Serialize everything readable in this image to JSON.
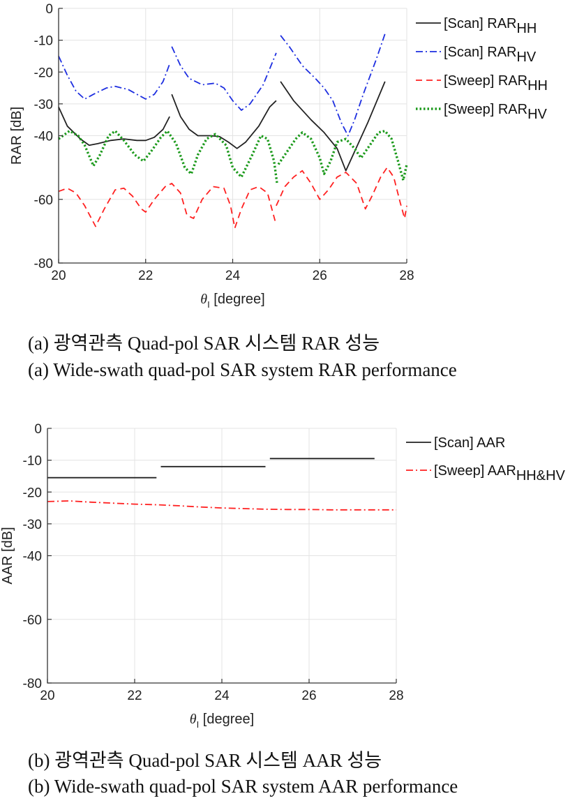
{
  "chart_data": [
    {
      "type": "line",
      "ylabel": "RAR [dB]",
      "xlabel_symbol": "θ",
      "xlabel_subscript": "I",
      "xlabel_text": " [degree]",
      "xlim": [
        20,
        28
      ],
      "ylim": [
        -80,
        0
      ],
      "xticks": [
        "20",
        "22",
        "24",
        "26",
        "28"
      ],
      "yticks": [
        "0",
        "-10",
        "-20",
        "-30",
        "-40",
        "-60",
        "-80"
      ],
      "ytick_values": [
        0,
        -10,
        -20,
        -30,
        -40,
        -60,
        -80
      ],
      "grid": true,
      "legend_position": "right",
      "series": [
        {
          "name": "[Scan] RAR",
          "name_sub": "HH",
          "color": "#222222",
          "dash": "solid",
          "segments": [
            [
              [
                20.0,
                -31
              ],
              [
                20.2,
                -37
              ],
              [
                20.5,
                -41
              ],
              [
                20.7,
                -43
              ],
              [
                20.9,
                -42.5
              ],
              [
                21.2,
                -41.5
              ],
              [
                21.5,
                -41
              ],
              [
                21.8,
                -41.5
              ],
              [
                22.0,
                -41.5
              ],
              [
                22.2,
                -40.5
              ],
              [
                22.4,
                -38
              ],
              [
                22.55,
                -34
              ]
            ],
            [
              [
                22.6,
                -27
              ],
              [
                22.8,
                -34
              ],
              [
                23.0,
                -38
              ],
              [
                23.2,
                -40
              ],
              [
                23.5,
                -40
              ],
              [
                23.7,
                -40.3
              ],
              [
                23.9,
                -42
              ],
              [
                24.1,
                -44
              ],
              [
                24.3,
                -42
              ],
              [
                24.6,
                -37
              ],
              [
                24.85,
                -31
              ],
              [
                25.0,
                -29
              ]
            ],
            [
              [
                25.1,
                -23
              ],
              [
                25.4,
                -29
              ],
              [
                25.8,
                -35
              ],
              [
                26.1,
                -39
              ],
              [
                26.4,
                -44
              ],
              [
                26.6,
                -51
              ],
              [
                26.8,
                -45
              ],
              [
                27.1,
                -36
              ],
              [
                27.5,
                -23
              ]
            ]
          ]
        },
        {
          "name": "[Scan] RAR",
          "name_sub": "HV",
          "color": "#1d2ee0",
          "dash": "dashdot",
          "segments": [
            [
              [
                20.0,
                -15
              ],
              [
                20.2,
                -21
              ],
              [
                20.4,
                -26
              ],
              [
                20.6,
                -28.5
              ],
              [
                20.8,
                -27
              ],
              [
                21.1,
                -25
              ],
              [
                21.3,
                -24.5
              ],
              [
                21.6,
                -25.5
              ],
              [
                21.8,
                -27
              ],
              [
                22.0,
                -28.5
              ],
              [
                22.2,
                -27
              ],
              [
                22.4,
                -23
              ],
              [
                22.55,
                -17.5
              ]
            ],
            [
              [
                22.6,
                -12
              ],
              [
                22.8,
                -18
              ],
              [
                23.0,
                -22
              ],
              [
                23.3,
                -24
              ],
              [
                23.6,
                -23.5
              ],
              [
                23.8,
                -25
              ],
              [
                24.0,
                -29
              ],
              [
                24.2,
                -32
              ],
              [
                24.4,
                -30
              ],
              [
                24.7,
                -24
              ],
              [
                25.0,
                -14
              ]
            ],
            [
              [
                25.1,
                -8.5
              ],
              [
                25.3,
                -12
              ],
              [
                25.6,
                -18
              ],
              [
                25.9,
                -22
              ],
              [
                26.1,
                -25
              ],
              [
                26.3,
                -29
              ],
              [
                26.5,
                -36
              ],
              [
                26.65,
                -40
              ],
              [
                26.8,
                -35
              ],
              [
                27.0,
                -27
              ],
              [
                27.3,
                -16
              ],
              [
                27.5,
                -8
              ]
            ]
          ]
        },
        {
          "name": "[Sweep] RAR",
          "name_sub": "HH",
          "color": "#ff2020",
          "dash": "dashed",
          "segments": [
            [
              [
                20.0,
                -57.5
              ],
              [
                20.2,
                -56.5
              ],
              [
                20.4,
                -58
              ],
              [
                20.6,
                -62
              ],
              [
                20.85,
                -68.5
              ],
              [
                21.05,
                -63
              ],
              [
                21.3,
                -57
              ],
              [
                21.5,
                -56.5
              ],
              [
                21.7,
                -59
              ],
              [
                21.9,
                -63
              ],
              [
                22.0,
                -64
              ],
              [
                22.2,
                -60
              ],
              [
                22.45,
                -56
              ],
              [
                22.6,
                -55
              ],
              [
                22.8,
                -58
              ],
              [
                22.95,
                -65
              ],
              [
                23.1,
                -66
              ],
              [
                23.3,
                -60
              ],
              [
                23.55,
                -56
              ],
              [
                23.8,
                -56.5
              ],
              [
                23.95,
                -62
              ],
              [
                24.05,
                -69
              ],
              [
                24.2,
                -63
              ],
              [
                24.4,
                -57
              ],
              [
                24.6,
                -56
              ],
              [
                24.8,
                -58
              ],
              [
                24.98,
                -67
              ]
            ],
            [
              [
                25.0,
                -62
              ],
              [
                25.2,
                -56
              ],
              [
                25.4,
                -53
              ],
              [
                25.6,
                -51
              ],
              [
                25.8,
                -55
              ],
              [
                26.0,
                -60
              ],
              [
                26.2,
                -57
              ],
              [
                26.4,
                -53
              ],
              [
                26.6,
                -51.5
              ],
              [
                26.85,
                -55
              ],
              [
                27.05,
                -63
              ],
              [
                27.2,
                -59
              ],
              [
                27.4,
                -53
              ],
              [
                27.55,
                -50
              ],
              [
                27.7,
                -53
              ],
              [
                27.85,
                -61
              ],
              [
                27.95,
                -66
              ],
              [
                28.0,
                -62
              ]
            ]
          ]
        },
        {
          "name": "[Sweep] RAR",
          "name_sub": "HV",
          "color": "#1c9a1c",
          "dash": "dotted",
          "segments": [
            [
              [
                20.0,
                -41
              ],
              [
                20.25,
                -38.5
              ],
              [
                20.45,
                -40
              ],
              [
                20.6,
                -43
              ],
              [
                20.8,
                -49.5
              ],
              [
                20.95,
                -46
              ],
              [
                21.15,
                -40
              ],
              [
                21.3,
                -38.5
              ],
              [
                21.5,
                -41.5
              ],
              [
                21.75,
                -46
              ],
              [
                21.95,
                -48
              ],
              [
                22.15,
                -44.5
              ],
              [
                22.35,
                -40.5
              ],
              [
                22.5,
                -38.5
              ],
              [
                22.7,
                -42.5
              ],
              [
                22.9,
                -50
              ],
              [
                23.05,
                -52
              ],
              [
                23.2,
                -46
              ],
              [
                23.4,
                -41
              ],
              [
                23.6,
                -39.5
              ],
              [
                23.85,
                -43
              ],
              [
                24.0,
                -50
              ],
              [
                24.2,
                -53
              ],
              [
                24.45,
                -46
              ],
              [
                24.65,
                -40
              ],
              [
                24.8,
                -41
              ],
              [
                24.95,
                -48
              ],
              [
                25.02,
                -55
              ]
            ],
            [
              [
                25.05,
                -49
              ],
              [
                25.25,
                -45
              ],
              [
                25.45,
                -41
              ],
              [
                25.6,
                -39
              ],
              [
                25.8,
                -41
              ],
              [
                26.0,
                -47
              ],
              [
                26.1,
                -52
              ],
              [
                26.25,
                -48
              ],
              [
                26.4,
                -42
              ],
              [
                26.6,
                -41
              ],
              [
                26.8,
                -44
              ],
              [
                26.95,
                -47
              ],
              [
                27.15,
                -43
              ],
              [
                27.35,
                -39
              ],
              [
                27.5,
                -38.5
              ],
              [
                27.65,
                -41
              ],
              [
                27.8,
                -48
              ],
              [
                27.92,
                -54
              ],
              [
                28.0,
                -49
              ]
            ]
          ]
        }
      ]
    },
    {
      "type": "line",
      "ylabel": "AAR [dB]",
      "xlabel_symbol": "θ",
      "xlabel_subscript": "I",
      "xlabel_text": " [degree]",
      "xlim": [
        20,
        28
      ],
      "ylim": [
        -80,
        0
      ],
      "xticks": [
        "20",
        "22",
        "24",
        "26",
        "28"
      ],
      "yticks": [
        "0",
        "-10",
        "-20",
        "-30",
        "-40",
        "-60",
        "-80"
      ],
      "ytick_values": [
        0,
        -10,
        -20,
        -30,
        -40,
        -60,
        -80
      ],
      "grid": true,
      "legend_position": "right",
      "series": [
        {
          "name": "[Scan] AAR",
          "name_sub": "",
          "color": "#222222",
          "dash": "solid",
          "segments": [
            [
              [
                20.0,
                -15.5
              ],
              [
                22.5,
                -15.5
              ]
            ],
            [
              [
                22.6,
                -12
              ],
              [
                25.0,
                -12
              ]
            ],
            [
              [
                25.1,
                -9.5
              ],
              [
                27.5,
                -9.5
              ]
            ]
          ]
        },
        {
          "name": "[Sweep] AAR",
          "name_sub": "HH&HV",
          "color": "#ff2020",
          "dash": "dashdot",
          "segments": [
            [
              [
                20.0,
                -23
              ],
              [
                20.5,
                -22.8
              ],
              [
                21.0,
                -23.2
              ],
              [
                21.5,
                -23.5
              ],
              [
                22.0,
                -23.8
              ],
              [
                22.5,
                -24
              ],
              [
                23.0,
                -24.3
              ],
              [
                23.5,
                -24.7
              ],
              [
                24.0,
                -25
              ],
              [
                24.5,
                -25.2
              ],
              [
                25.0,
                -25.4
              ],
              [
                25.5,
                -25.5
              ],
              [
                26.0,
                -25.5
              ],
              [
                26.5,
                -25.6
              ],
              [
                27.0,
                -25.6
              ],
              [
                27.5,
                -25.6
              ],
              [
                28.0,
                -25.6
              ]
            ]
          ]
        }
      ]
    }
  ],
  "captions": {
    "a_ko": "(a)  광역관측  Quad-pol  SAR  시스템  RAR  성능",
    "a_en": "(a)  Wide-swath  quad-pol  SAR  system  RAR  performance",
    "b_ko": "(b)  광역관측  Quad-pol  SAR  시스템  AAR  성능",
    "b_en": "(b)  Wide-swath  quad-pol  SAR  system  AAR  performance"
  }
}
